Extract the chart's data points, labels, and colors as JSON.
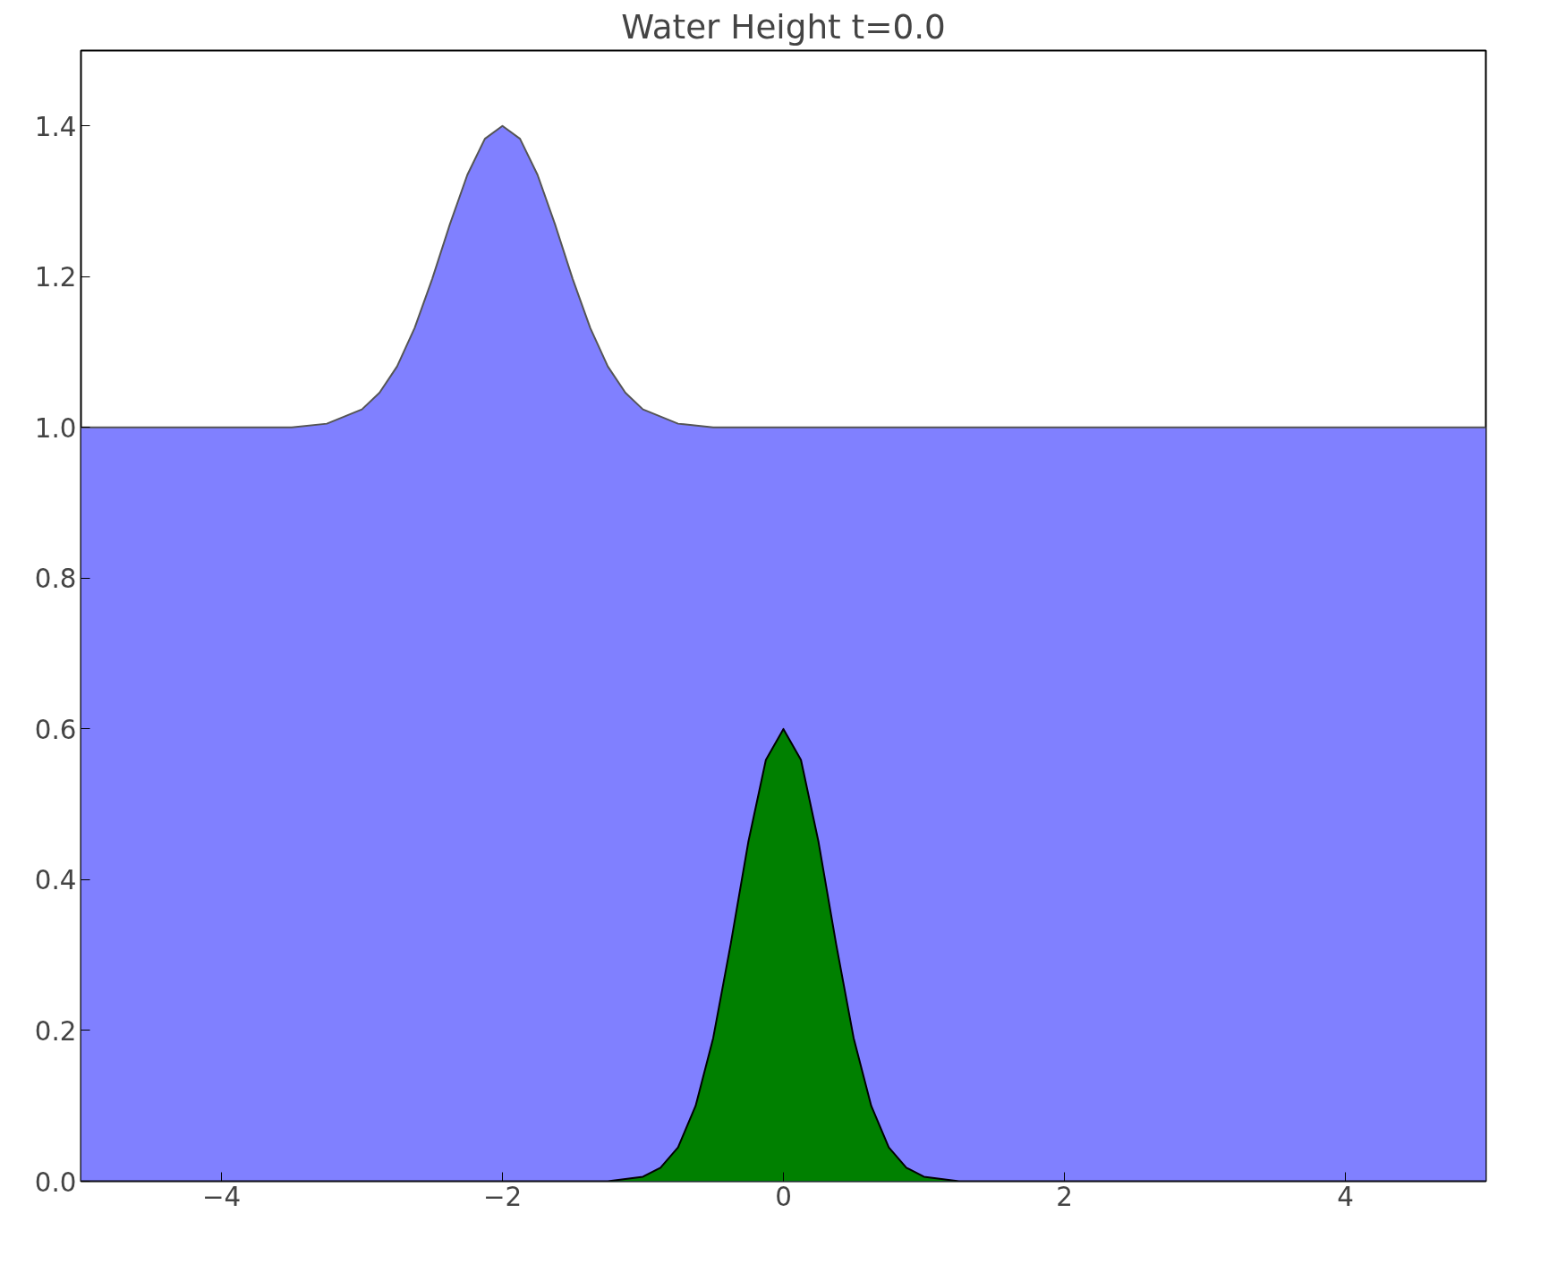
{
  "chart_data": {
    "type": "area",
    "title": "Water Height t=0.0",
    "series": [
      {
        "color": "#8080ff",
        "x": [
          -5,
          -3.5,
          -3.25,
          -3,
          -2.875,
          -2.75,
          -2.625,
          -2.5,
          -2.375,
          -2.25,
          -2.125,
          -2,
          -1.875,
          -1.75,
          -1.625,
          -1.5,
          -1.375,
          -1.25,
          -1.125,
          -1,
          -0.75,
          -0.5,
          5
        ],
        "values": [
          1.0,
          1.0,
          1.005,
          1.024,
          1.046,
          1.081,
          1.132,
          1.197,
          1.269,
          1.335,
          1.383,
          1.4,
          1.383,
          1.335,
          1.269,
          1.197,
          1.132,
          1.081,
          1.046,
          1.024,
          1.005,
          1.0,
          1.0
        ]
      },
      {
        "color": "#008000",
        "x": [
          -5,
          -1.25,
          -1,
          -0.875,
          -0.75,
          -0.625,
          -0.5,
          -0.375,
          -0.25,
          -0.125,
          0,
          0.125,
          0.25,
          0.375,
          0.5,
          0.625,
          0.75,
          0.875,
          1,
          1.25,
          5
        ],
        "values": [
          0,
          0,
          0.006,
          0.018,
          0.045,
          0.1,
          0.19,
          0.315,
          0.45,
          0.559,
          0.6,
          0.559,
          0.45,
          0.315,
          0.19,
          0.1,
          0.045,
          0.018,
          0.006,
          0,
          0
        ]
      }
    ],
    "xlim": [
      -5,
      5
    ],
    "ylim": [
      0,
      1.5
    ],
    "xticks": [
      {
        "value": -4,
        "label": "−4"
      },
      {
        "value": -2,
        "label": "−2"
      },
      0,
      2,
      4
    ],
    "yticks": [
      {
        "value": 0,
        "label": "0.0"
      },
      {
        "value": 0.2,
        "label": "0.2"
      },
      {
        "value": 0.4,
        "label": "0.4"
      },
      {
        "value": 0.6,
        "label": "0.6"
      },
      {
        "value": 0.8,
        "label": "0.8"
      },
      {
        "value": 1.0,
        "label": "1.0"
      },
      {
        "value": 1.2,
        "label": "1.2"
      },
      {
        "value": 1.4,
        "label": "1.4"
      }
    ]
  }
}
